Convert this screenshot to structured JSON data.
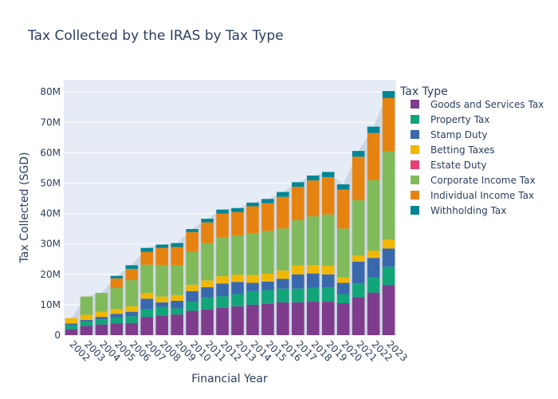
{
  "chart_data": {
    "type": "bar",
    "stacked": true,
    "title": "Tax Collected by the IRAS by Tax Type",
    "xlabel": "Financial Year",
    "ylabel": "Tax Collected (SGD)",
    "ylim": [
      0,
      84000000
    ],
    "yticks": [
      0,
      10000000,
      20000000,
      30000000,
      40000000,
      50000000,
      60000000,
      70000000,
      80000000
    ],
    "ytick_labels": [
      "0",
      "10M",
      "20M",
      "30M",
      "40M",
      "50M",
      "60M",
      "70M",
      "80M"
    ],
    "grid": true,
    "legend": {
      "title": "Tax Type",
      "placement": "right"
    },
    "categories": [
      "2002",
      "2003",
      "2004",
      "2005",
      "2006",
      "2007",
      "2008",
      "2009",
      "2010",
      "2011",
      "2012",
      "2013",
      "2014",
      "2015",
      "2016",
      "2017",
      "2018",
      "2019",
      "2020",
      "2021",
      "2022",
      "2023"
    ],
    "series": [
      {
        "name": "Goods and Services Tax",
        "color": "#7f3c8d",
        "values": [
          2000000,
          3000000,
          3500000,
          3800000,
          4000000,
          6000000,
          6500000,
          6800000,
          8000000,
          8500000,
          9000000,
          9500000,
          10000000,
          10300000,
          10800000,
          10800000,
          11000000,
          11000000,
          10500000,
          12500000,
          14000000,
          16500000
        ]
      },
      {
        "name": "Property Tax",
        "color": "#11a579",
        "values": [
          1300000,
          1500000,
          1700000,
          2000000,
          2200000,
          2500000,
          2800000,
          2000000,
          3000000,
          3800000,
          3800000,
          4000000,
          4500000,
          4500000,
          4500000,
          4500000,
          4600000,
          4700000,
          3000000,
          4500000,
          5000000,
          6000000
        ]
      },
      {
        "name": "Stamp Duty",
        "color": "#3969ac",
        "values": [
          500000,
          500000,
          800000,
          1200000,
          1500000,
          3500000,
          1500000,
          2500000,
          3500000,
          3500000,
          4200000,
          4000000,
          2700000,
          2800000,
          3200000,
          4700000,
          4700000,
          4300000,
          3700000,
          7200000,
          6400000,
          6000000
        ]
      },
      {
        "name": "Betting Taxes",
        "color": "#f2b701",
        "values": [
          1800000,
          1700000,
          1700000,
          1600000,
          1800000,
          1900000,
          1900000,
          1900000,
          2100000,
          2200000,
          2400000,
          2400000,
          2600000,
          2600000,
          2800000,
          2900000,
          2800000,
          2800000,
          1800000,
          2000000,
          2400000,
          3000000
        ]
      },
      {
        "name": "Estate Duty",
        "color": "#e73f74",
        "values": [
          0,
          0,
          0,
          0,
          0,
          0,
          0,
          0,
          0,
          0,
          0,
          0,
          0,
          0,
          0,
          0,
          0,
          0,
          0,
          0,
          0,
          0
        ]
      },
      {
        "name": "Corporate Income Tax",
        "color": "#80ba5a",
        "values": [
          0,
          6000000,
          6200000,
          7000000,
          8600000,
          9300000,
          10400000,
          9700000,
          10800000,
          12300000,
          12900000,
          12900000,
          13800000,
          14100000,
          13800000,
          14900000,
          16000000,
          16900000,
          16100000,
          18200000,
          23200000,
          29000000
        ]
      },
      {
        "name": "Individual Income Tax",
        "color": "#e68310",
        "values": [
          0,
          0,
          0,
          3100000,
          3700000,
          4200000,
          5600000,
          6100000,
          6500000,
          6800000,
          7700000,
          7700000,
          8800000,
          9100000,
          10400000,
          11000000,
          11800000,
          12300000,
          12800000,
          14300000,
          15500000,
          17500000
        ]
      },
      {
        "name": "Withholding Tax",
        "color": "#008695",
        "values": [
          0,
          0,
          0,
          800000,
          1200000,
          1300000,
          1100000,
          1300000,
          1000000,
          1200000,
          1300000,
          1300000,
          1200000,
          1400000,
          1600000,
          1500000,
          1600000,
          1700000,
          1700000,
          1900000,
          2100000,
          2300000
        ]
      }
    ]
  }
}
